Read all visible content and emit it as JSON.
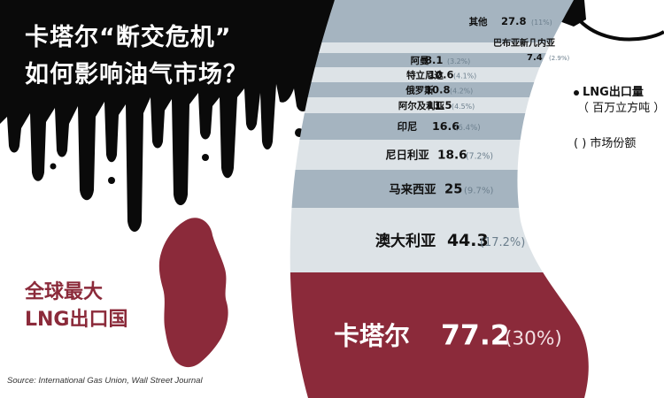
{
  "title": {
    "line1": "卡塔尔“断交危机”",
    "line2": "如何影响油气市场？"
  },
  "highlight_label": {
    "line1": "全球最大",
    "line2": "LNG出口国"
  },
  "source": "Source: International Gas Union, Wall Street Journal",
  "legend": {
    "volume_label": "LNG出口量",
    "volume_unit": "（ 百万立方吨 ）",
    "share_symbol": "( )",
    "share_label": "市场份额"
  },
  "colors": {
    "black": "#0a0a0a",
    "qatar": "#8b2a3a",
    "band_light": "#dde3e7",
    "band_dark": "#a5b4c0",
    "share_text": "#6c7f8d"
  },
  "chart_data": {
    "type": "table",
    "title": "卡塔尔“断交危机” 如何影响油气市场？",
    "value_unit": "百万立方吨",
    "rows": [
      {
        "name": "其他",
        "value": 27.8,
        "value_label": "27.8",
        "share_label": "(11%)"
      },
      {
        "name": "巴布亚新几内亚",
        "value": 7.4,
        "value_label": "7.4",
        "share_label": "(2.9%)"
      },
      {
        "name": "阿曼",
        "value": 8.1,
        "value_label": "8.1",
        "share_label": "(3.2%)"
      },
      {
        "name": "特立尼达",
        "value": 10.6,
        "value_label": "10.6",
        "share_label": "(4.1%)"
      },
      {
        "name": "俄罗斯",
        "value": 10.8,
        "value_label": "10.8",
        "share_label": "(4.2%)"
      },
      {
        "name": "阿尔及利亚",
        "value": 11.5,
        "value_label": "11.5",
        "share_label": "(4.5%)"
      },
      {
        "name": "印尼",
        "value": 16.6,
        "value_label": "16.6",
        "share_label": "(6.4%)"
      },
      {
        "name": "尼日利亚",
        "value": 18.6,
        "value_label": "18.6",
        "share_label": "(7.2%)"
      },
      {
        "name": "马来西亚",
        "value": 25,
        "value_label": "25",
        "share_label": "(9.7%)"
      },
      {
        "name": "澳大利亚",
        "value": 44.3,
        "value_label": "44.3",
        "share_label": "(17.2%)"
      },
      {
        "name": "卡塔尔",
        "value": 77.2,
        "value_label": "77.2",
        "share_label": "(30%)"
      }
    ]
  }
}
